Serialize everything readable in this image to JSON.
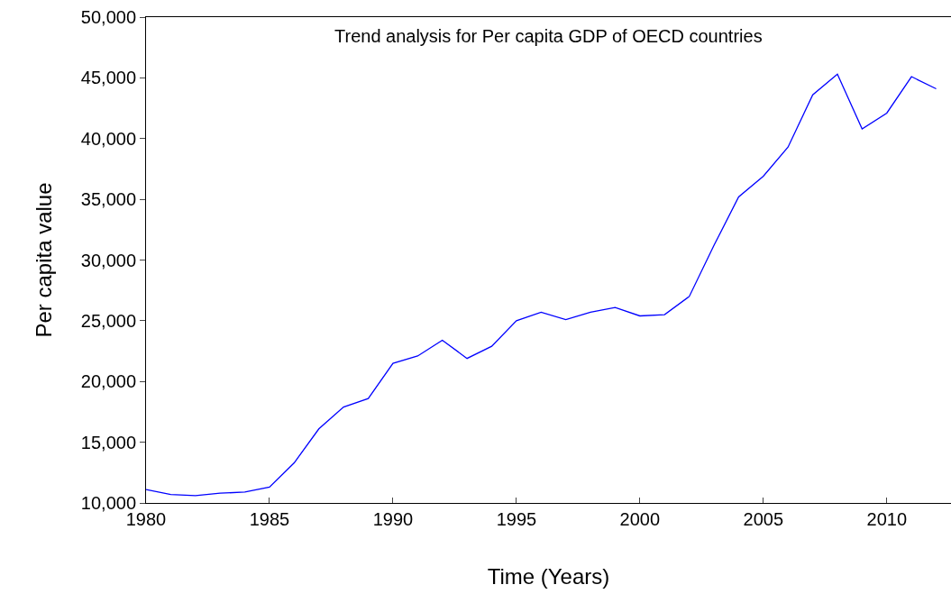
{
  "chart_data": {
    "type": "line",
    "title": "Trend analysis for Per capita GDP of OECD countries",
    "xlabel": "Time (Years)",
    "ylabel": "Per capita value",
    "x": [
      1980,
      1981,
      1982,
      1983,
      1984,
      1985,
      1986,
      1987,
      1988,
      1989,
      1990,
      1991,
      1992,
      1993,
      1994,
      1995,
      1996,
      1997,
      1998,
      1999,
      2000,
      2001,
      2002,
      2003,
      2004,
      2005,
      2006,
      2007,
      2008,
      2009,
      2010,
      2011,
      2012
    ],
    "series": [
      {
        "color": "#0000ff",
        "values": [
          11100,
          10700,
          10600,
          10800,
          10900,
          11300,
          13300,
          16100,
          17900,
          18600,
          21500,
          22100,
          23400,
          21900,
          22900,
          25000,
          25700,
          25100,
          25700,
          26100,
          25400,
          25500,
          27000,
          31200,
          35200,
          36900,
          39300,
          43600,
          45300,
          40800,
          42100,
          45100,
          44100
        ]
      }
    ],
    "xlim": [
      1980,
      2012.6
    ],
    "xticks": [
      1980,
      1985,
      1990,
      1995,
      2000,
      2005,
      2010
    ],
    "ylim": [
      10000,
      50000
    ],
    "yticks": [
      {
        "value": 10000,
        "label": "10,000"
      },
      {
        "value": 15000,
        "label": "15,000"
      },
      {
        "value": 20000,
        "label": "20,000"
      },
      {
        "value": 25000,
        "label": "25,000"
      },
      {
        "value": 30000,
        "label": "30,000"
      },
      {
        "value": 35000,
        "label": "35,000"
      },
      {
        "value": 40000,
        "label": "40,000"
      },
      {
        "value": 45000,
        "label": "45,000"
      },
      {
        "value": 50000,
        "label": "50,000"
      }
    ],
    "grid": false,
    "marker": "none",
    "line_style": "solid"
  }
}
